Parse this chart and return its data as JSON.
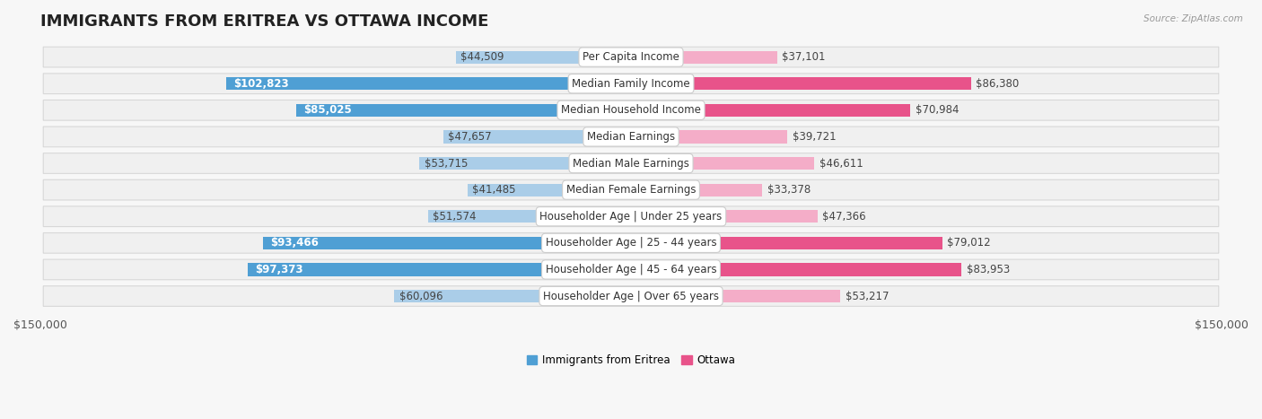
{
  "title": "IMMIGRANTS FROM ERITREA VS OTTAWA INCOME",
  "source": "Source: ZipAtlas.com",
  "categories": [
    "Per Capita Income",
    "Median Family Income",
    "Median Household Income",
    "Median Earnings",
    "Median Male Earnings",
    "Median Female Earnings",
    "Householder Age | Under 25 years",
    "Householder Age | 25 - 44 years",
    "Householder Age | 45 - 64 years",
    "Householder Age | Over 65 years"
  ],
  "eritrea_values": [
    44509,
    102823,
    85025,
    47657,
    53715,
    41485,
    51574,
    93466,
    97373,
    60096
  ],
  "ottawa_values": [
    37101,
    86380,
    70984,
    39721,
    46611,
    33378,
    47366,
    79012,
    83953,
    53217
  ],
  "max_value": 150000,
  "eritrea_color_full": "#4f9fd4",
  "eritrea_color_light": "#aacde8",
  "ottawa_color_full": "#e8538a",
  "ottawa_color_light": "#f4adc8",
  "background_color": "#f7f7f7",
  "row_bg_light": "#f0f0f0",
  "row_border": "#d8d8d8",
  "label_bg": "#ffffff",
  "x_tick_labels": [
    "$150,000",
    "$150,000"
  ],
  "legend_eritrea": "Immigrants from Eritrea",
  "legend_ottawa": "Ottawa",
  "title_fontsize": 13,
  "label_fontsize": 8.5,
  "value_fontsize": 8.5,
  "axis_fontsize": 9,
  "eritrea_threshold": 80000,
  "ottawa_threshold": 70000
}
